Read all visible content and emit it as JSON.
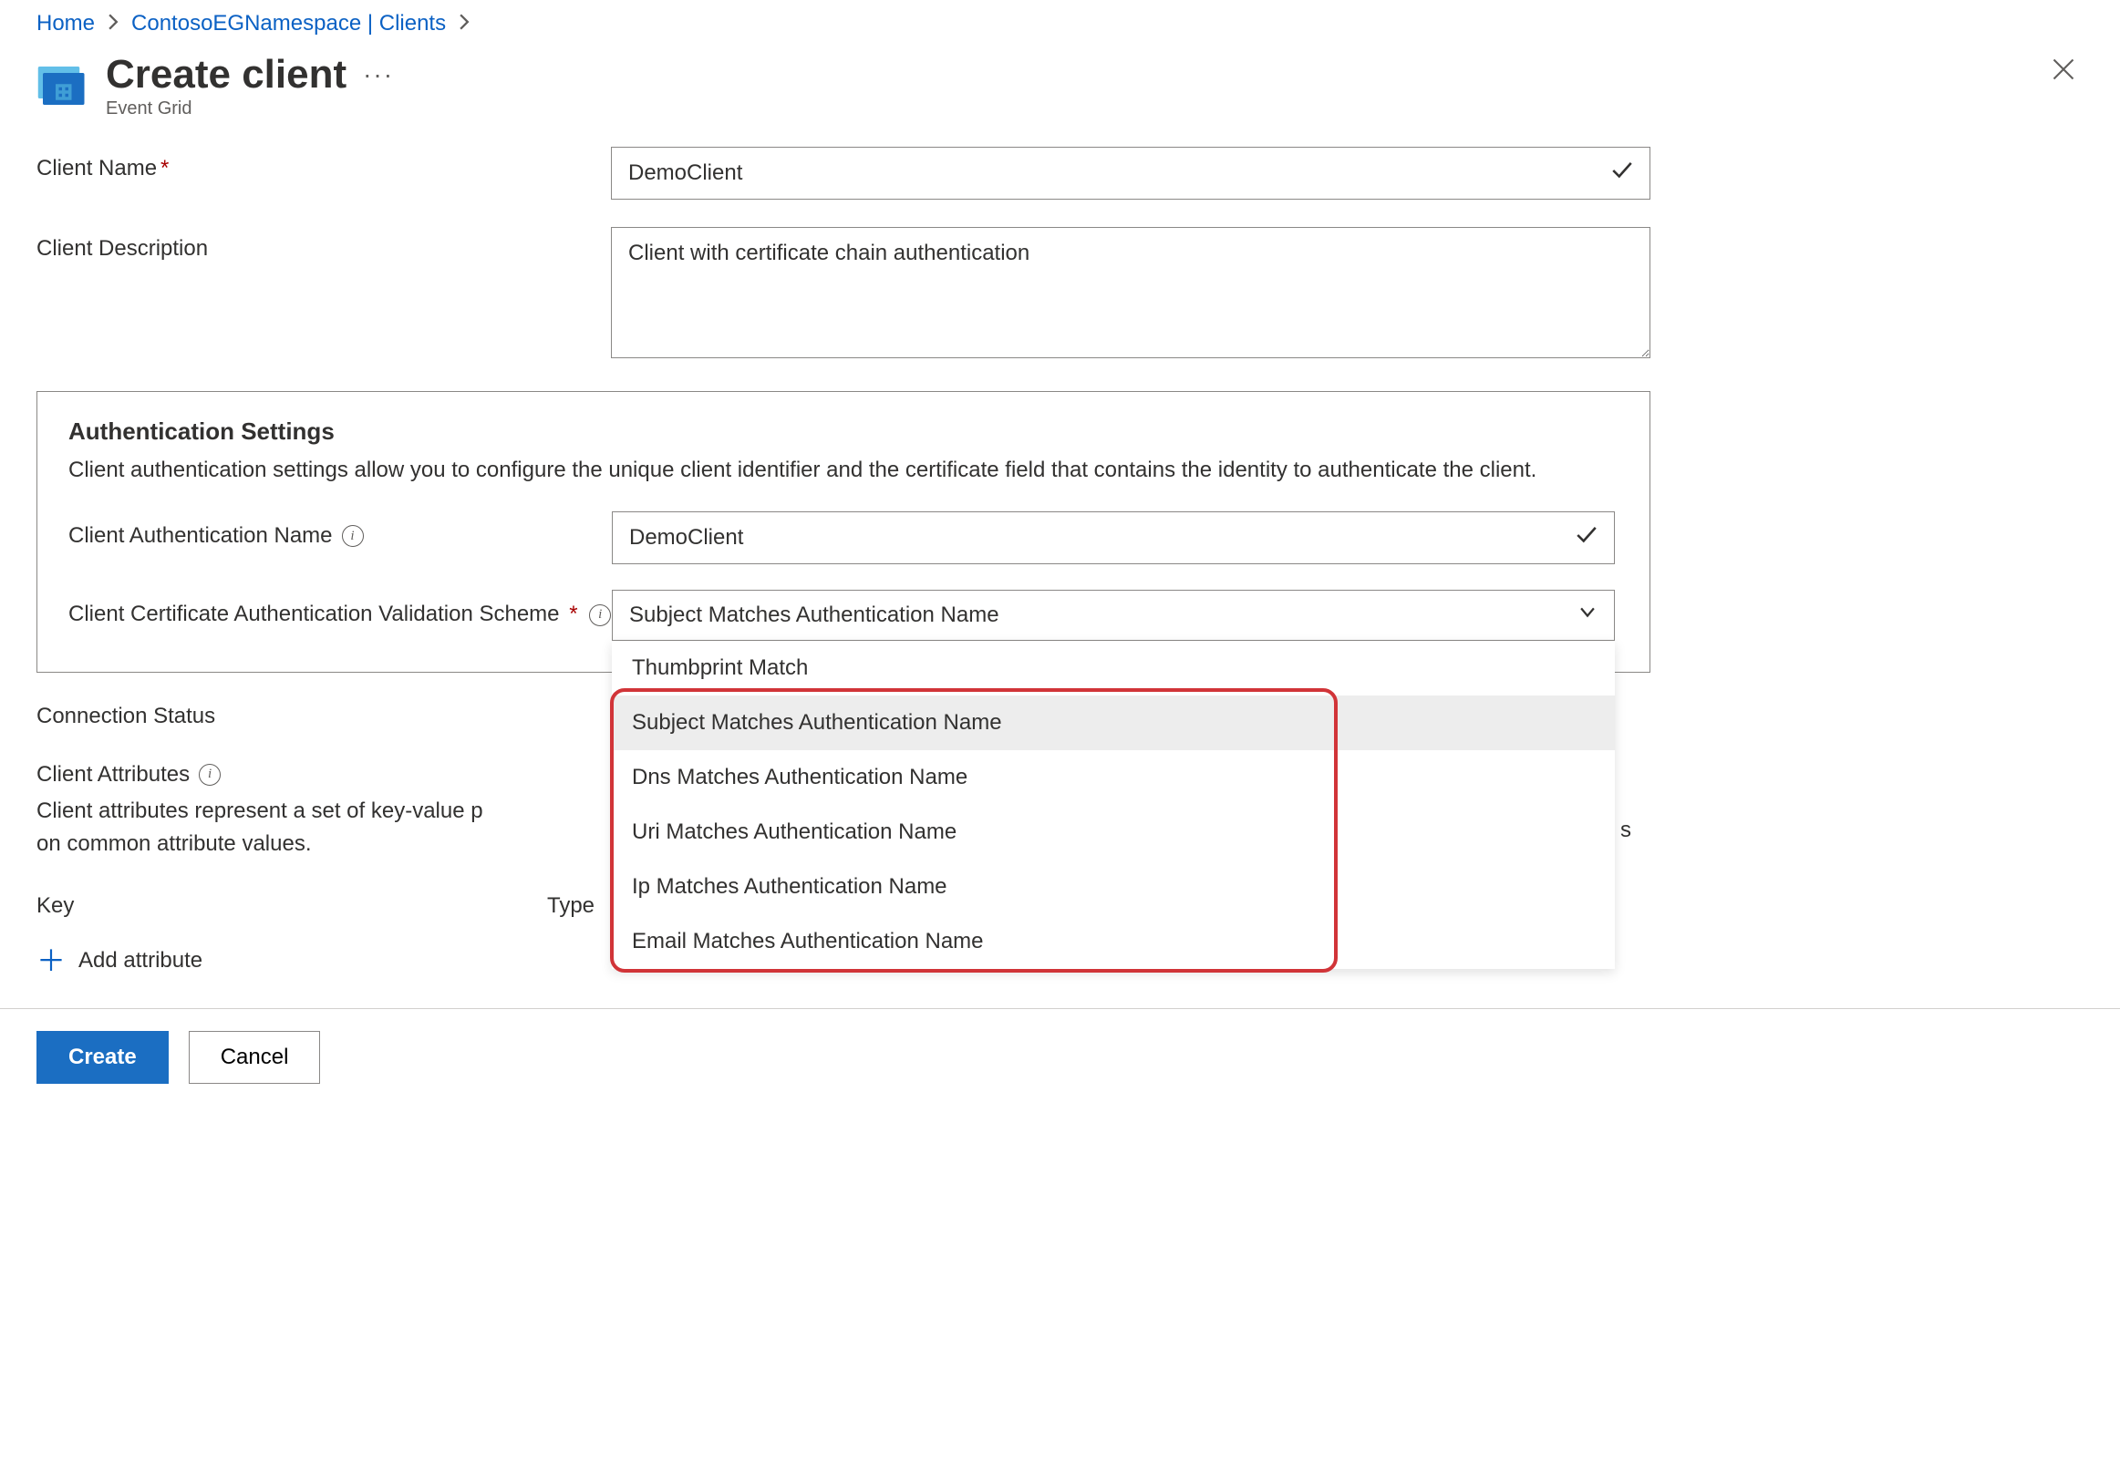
{
  "breadcrumb": {
    "home": "Home",
    "ns": "ContosoEGNamespace | Clients"
  },
  "header": {
    "title": "Create client",
    "subtitle": "Event Grid",
    "ellipsis": "···"
  },
  "form": {
    "client_name_label": "Client Name",
    "client_name_value": "DemoClient",
    "client_desc_label": "Client Description",
    "client_desc_value": "Client with certificate chain authentication"
  },
  "auth": {
    "section_title": "Authentication Settings",
    "section_desc": "Client authentication settings allow you to configure the unique client identifier and the certificate field that contains the identity to authenticate the client.",
    "auth_name_label": "Client Authentication Name",
    "auth_name_value": "DemoClient",
    "scheme_label": "Client Certificate Authentication Validation Scheme",
    "scheme_value": "Subject Matches Authentication Name",
    "options": [
      "Thumbprint Match",
      "Subject Matches Authentication Name",
      "Dns Matches Authentication Name",
      "Uri Matches Authentication Name",
      "Ip Matches Authentication Name",
      "Email Matches Authentication Name"
    ],
    "selected_index": 1,
    "highlight_color": "#d13438"
  },
  "conn": {
    "label": "Connection Status"
  },
  "attrs": {
    "title": "Client Attributes",
    "desc_prefix": "Client attributes represent a set of key-value p",
    "desc_suffix": "on common attribute values.",
    "key_label": "Key",
    "type_label": "Type",
    "add_label": "Add attribute"
  },
  "footer": {
    "create": "Create",
    "cancel": "Cancel"
  },
  "colors": {
    "link": "#0b61c4",
    "text": "#323130",
    "muted": "#605e5c",
    "border": "#8a8886",
    "primary_btn": "#1b6ec2",
    "required": "#a80000"
  }
}
